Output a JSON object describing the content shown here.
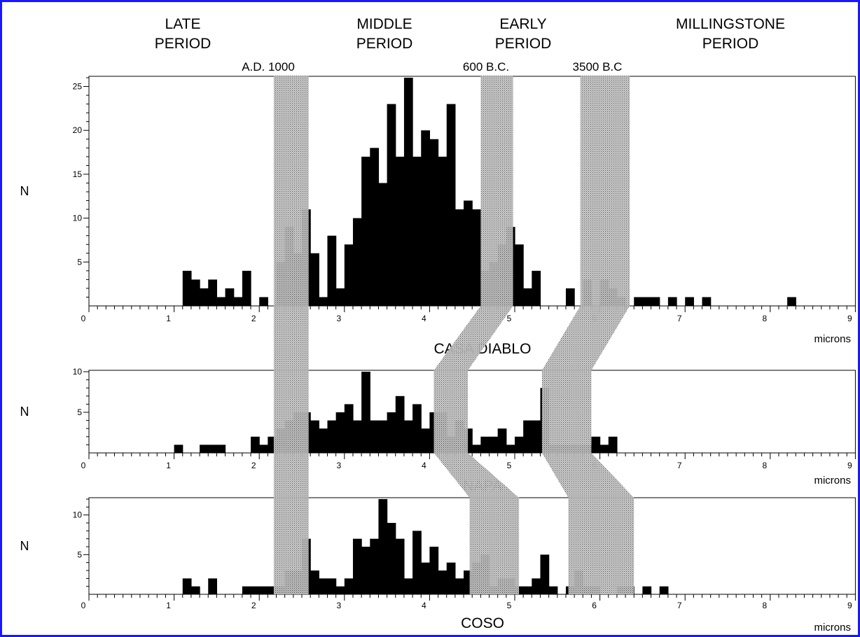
{
  "colors": {
    "border": "#1a1aee",
    "bar": "#000000",
    "band_fill": "#9a9a9a"
  },
  "periods": [
    {
      "line1": "LATE",
      "line2": "PERIOD"
    },
    {
      "line1": "MIDDLE",
      "line2": "PERIOD"
    },
    {
      "line1": "EARLY",
      "line2": "PERIOD"
    },
    {
      "line1": "MILLINGSTONE",
      "line2": "PERIOD"
    }
  ],
  "markers": [
    "A.D. 1000",
    "600 B.C.",
    "3500 B.C"
  ],
  "chart_data": [
    {
      "type": "bar",
      "site": "CASA DIABLO",
      "ylabel": "N",
      "xlabel": "microns",
      "xlim": [
        0,
        9
      ],
      "ylim": [
        0,
        26
      ],
      "yticks": [
        "5",
        "10",
        "15",
        "20",
        "25"
      ],
      "xticks": [
        "0",
        "1",
        "2",
        "3",
        "4",
        "5",
        "6",
        "7",
        "8",
        "9"
      ],
      "bin_width": 0.1,
      "bins": [
        [
          1.1,
          4
        ],
        [
          1.2,
          3
        ],
        [
          1.3,
          2
        ],
        [
          1.4,
          3
        ],
        [
          1.5,
          1
        ],
        [
          1.6,
          2
        ],
        [
          1.7,
          1
        ],
        [
          1.8,
          4
        ],
        [
          2.0,
          1
        ],
        [
          2.2,
          5
        ],
        [
          2.3,
          9
        ],
        [
          2.4,
          6
        ],
        [
          2.5,
          11
        ],
        [
          2.6,
          6
        ],
        [
          2.7,
          1
        ],
        [
          2.8,
          8
        ],
        [
          2.9,
          2
        ],
        [
          3.0,
          7
        ],
        [
          3.1,
          10
        ],
        [
          3.2,
          17
        ],
        [
          3.3,
          18
        ],
        [
          3.4,
          14
        ],
        [
          3.5,
          23
        ],
        [
          3.6,
          17
        ],
        [
          3.7,
          26
        ],
        [
          3.8,
          17
        ],
        [
          3.9,
          20
        ],
        [
          4.0,
          19
        ],
        [
          4.1,
          17
        ],
        [
          4.2,
          23
        ],
        [
          4.3,
          11
        ],
        [
          4.4,
          12
        ],
        [
          4.5,
          11
        ],
        [
          4.6,
          4
        ],
        [
          4.7,
          5
        ],
        [
          4.8,
          7
        ],
        [
          4.9,
          9
        ],
        [
          5.0,
          7
        ],
        [
          5.1,
          2
        ],
        [
          5.2,
          4
        ],
        [
          5.6,
          2
        ],
        [
          5.8,
          3
        ],
        [
          6.0,
          3
        ],
        [
          6.1,
          2
        ],
        [
          6.2,
          1
        ],
        [
          6.4,
          1
        ],
        [
          6.5,
          1
        ],
        [
          6.6,
          1
        ],
        [
          6.8,
          1
        ],
        [
          7.0,
          1
        ],
        [
          7.2,
          1
        ],
        [
          8.2,
          1
        ]
      ]
    },
    {
      "type": "bar",
      "site": "NAPA",
      "ylabel": "N",
      "xlabel": "microns",
      "xlim": [
        0,
        9
      ],
      "ylim": [
        0,
        10
      ],
      "yticks": [
        "5",
        "10"
      ],
      "xticks": [
        "0",
        "1",
        "2",
        "3",
        "4",
        "5",
        "6",
        "7",
        "8",
        "9"
      ],
      "bin_width": 0.1,
      "bins": [
        [
          1.0,
          1
        ],
        [
          1.3,
          1
        ],
        [
          1.4,
          1
        ],
        [
          1.5,
          1
        ],
        [
          1.9,
          2
        ],
        [
          2.0,
          1
        ],
        [
          2.1,
          2
        ],
        [
          2.2,
          3
        ],
        [
          2.3,
          4
        ],
        [
          2.4,
          5
        ],
        [
          2.5,
          5
        ],
        [
          2.6,
          4
        ],
        [
          2.7,
          3
        ],
        [
          2.8,
          4
        ],
        [
          2.9,
          5
        ],
        [
          3.0,
          6
        ],
        [
          3.1,
          4
        ],
        [
          3.2,
          10
        ],
        [
          3.3,
          4
        ],
        [
          3.4,
          4
        ],
        [
          3.5,
          5
        ],
        [
          3.6,
          7
        ],
        [
          3.7,
          4
        ],
        [
          3.8,
          6
        ],
        [
          3.9,
          3
        ],
        [
          4.0,
          5
        ],
        [
          4.1,
          5
        ],
        [
          4.2,
          2
        ],
        [
          4.3,
          4
        ],
        [
          4.4,
          3
        ],
        [
          4.5,
          1
        ],
        [
          4.6,
          2
        ],
        [
          4.7,
          2
        ],
        [
          4.8,
          3
        ],
        [
          4.9,
          1
        ],
        [
          5.0,
          2
        ],
        [
          5.1,
          4
        ],
        [
          5.2,
          4
        ],
        [
          5.3,
          8
        ],
        [
          5.4,
          1
        ],
        [
          5.5,
          1
        ],
        [
          5.6,
          1
        ],
        [
          5.7,
          1
        ],
        [
          5.8,
          1
        ],
        [
          5.9,
          2
        ],
        [
          6.0,
          1
        ],
        [
          6.1,
          2
        ]
      ]
    },
    {
      "type": "bar",
      "site": "COSO",
      "ylabel": "N",
      "xlabel": "microns",
      "xlim": [
        0,
        9
      ],
      "ylim": [
        0,
        12
      ],
      "yticks": [
        "5",
        "10"
      ],
      "xticks": [
        "0",
        "1",
        "2",
        "3",
        "4",
        "5",
        "6",
        "7",
        "8",
        "9"
      ],
      "bin_width": 0.1,
      "bins": [
        [
          1.1,
          2
        ],
        [
          1.2,
          1
        ],
        [
          1.4,
          2
        ],
        [
          1.8,
          1
        ],
        [
          1.9,
          1
        ],
        [
          2.0,
          1
        ],
        [
          2.1,
          1
        ],
        [
          2.2,
          1
        ],
        [
          2.3,
          3
        ],
        [
          2.4,
          3
        ],
        [
          2.5,
          7
        ],
        [
          2.6,
          3
        ],
        [
          2.7,
          2
        ],
        [
          2.8,
          2
        ],
        [
          2.9,
          1
        ],
        [
          3.0,
          2
        ],
        [
          3.1,
          7
        ],
        [
          3.2,
          6
        ],
        [
          3.3,
          7
        ],
        [
          3.4,
          12
        ],
        [
          3.5,
          9
        ],
        [
          3.6,
          7
        ],
        [
          3.7,
          2
        ],
        [
          3.8,
          8
        ],
        [
          3.9,
          4
        ],
        [
          4.0,
          6
        ],
        [
          4.1,
          3
        ],
        [
          4.2,
          4
        ],
        [
          4.3,
          2
        ],
        [
          4.4,
          3
        ],
        [
          4.5,
          4
        ],
        [
          4.6,
          5
        ],
        [
          4.7,
          1
        ],
        [
          4.8,
          2
        ],
        [
          4.9,
          2
        ],
        [
          5.0,
          1
        ],
        [
          5.1,
          1
        ],
        [
          5.2,
          2
        ],
        [
          5.3,
          5
        ],
        [
          5.4,
          1
        ],
        [
          5.6,
          1
        ],
        [
          5.7,
          3
        ],
        [
          5.8,
          1
        ],
        [
          5.9,
          1
        ],
        [
          6.2,
          1
        ],
        [
          6.3,
          1
        ],
        [
          6.5,
          1
        ],
        [
          6.7,
          1
        ]
      ]
    }
  ],
  "bands": [
    {
      "marker": "A.D. 1000",
      "ranges": [
        [
          2.17,
          2.58
        ],
        [
          2.17,
          2.58
        ],
        [
          2.17,
          2.58
        ]
      ]
    },
    {
      "marker": "600 B.C.",
      "ranges": [
        [
          4.6,
          4.98
        ],
        [
          4.05,
          4.45
        ],
        [
          4.47,
          5.05
        ]
      ]
    },
    {
      "marker": "3500 B.C",
      "ranges": [
        [
          5.77,
          6.35
        ],
        [
          5.32,
          5.9
        ],
        [
          5.63,
          6.4
        ]
      ]
    }
  ]
}
